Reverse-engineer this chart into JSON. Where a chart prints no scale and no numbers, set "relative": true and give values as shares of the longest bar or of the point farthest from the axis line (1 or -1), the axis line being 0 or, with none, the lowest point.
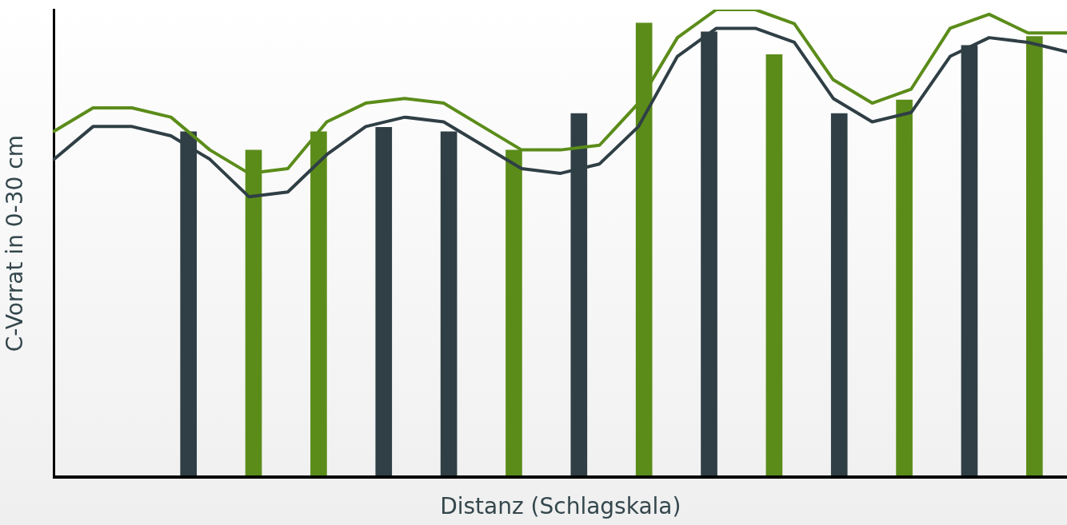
{
  "chart_data": [
    {
      "type": "line",
      "relative": true,
      "xlabel": "Distanz (Schlagskala)",
      "ylabel": "C-Vorrat in 0-30 cm",
      "grid": false,
      "legend": false,
      "categories": [
        null,
        null,
        null,
        null,
        null,
        null,
        null,
        null,
        null,
        null,
        null,
        null,
        null,
        null,
        null,
        null,
        null,
        null,
        null,
        null,
        null,
        null,
        null,
        null,
        null,
        null,
        null
      ],
      "series": [
        {
          "color": "#2f3f45",
          "values": [
            0.68,
            0.75,
            0.75,
            0.73,
            0.68,
            0.6,
            0.61,
            0.69,
            0.75,
            0.77,
            0.76,
            0.71,
            0.66,
            0.65,
            0.67,
            0.75,
            0.9,
            0.96,
            0.96,
            0.93,
            0.81,
            0.76,
            0.78,
            0.9,
            0.94,
            0.93,
            0.91
          ]
        },
        {
          "color": "#5b8c1a",
          "values": [
            0.74,
            0.79,
            0.79,
            0.77,
            0.7,
            0.65,
            0.66,
            0.76,
            0.8,
            0.81,
            0.8,
            0.75,
            0.7,
            0.7,
            0.71,
            0.8,
            0.94,
            1,
            1,
            0.97,
            0.85,
            0.8,
            0.83,
            0.96,
            0.99,
            0.95,
            0.95
          ]
        }
      ]
    },
    {
      "type": "bar",
      "relative": true,
      "grid": false,
      "legend": false,
      "categories": [
        null,
        null,
        null,
        null,
        null,
        null,
        null,
        null,
        null,
        null,
        null,
        null,
        null,
        null
      ],
      "values": [
        0.76,
        0.72,
        0.76,
        0.77,
        0.76,
        0.72,
        0.8,
        1,
        0.98,
        0.93,
        0.8,
        0.83,
        0.95,
        0.97
      ],
      "colors": [
        "#2f3f45",
        "#5b8c1a",
        "#5b8c1a",
        "#2f3f45",
        "#2f3f45",
        "#5b8c1a",
        "#2f3f45",
        "#5b8c1a",
        "#2f3f45",
        "#5b8c1a",
        "#2f3f45",
        "#5b8c1a",
        "#2f3f45",
        "#5b8c1a"
      ]
    }
  ]
}
